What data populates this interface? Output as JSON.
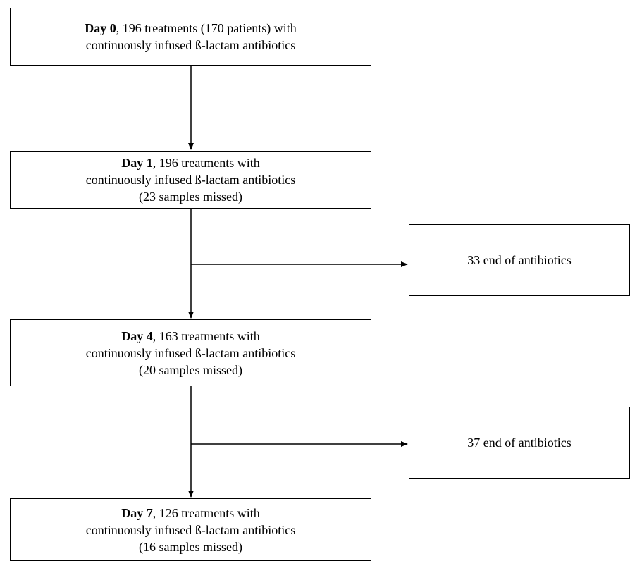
{
  "colors": {
    "stroke": "#000000",
    "background": "#ffffff"
  },
  "boxes": {
    "day0": {
      "day": "Day 0",
      "rest": ", 196 treatments (170 patients) with",
      "line2": "continuously infused ß-lactam antibiotics"
    },
    "day1": {
      "day": "Day 1",
      "rest": ", 196 treatments with",
      "line2": "continuously infused ß-lactam antibiotics",
      "line3": "(23 samples missed)"
    },
    "day4": {
      "day": "Day 4",
      "rest": ", 163 treatments with",
      "line2": "continuously infused ß-lactam antibiotics",
      "line3": "(20 samples missed)"
    },
    "day7": {
      "day": "Day 7",
      "rest": ", 126 treatments with",
      "line2": "continuously infused ß-lactam antibiotics",
      "line3": "(16 samples missed)"
    },
    "exit1": {
      "text": "33 end of antibiotics"
    },
    "exit2": {
      "text": "37 end of antibiotics"
    }
  }
}
